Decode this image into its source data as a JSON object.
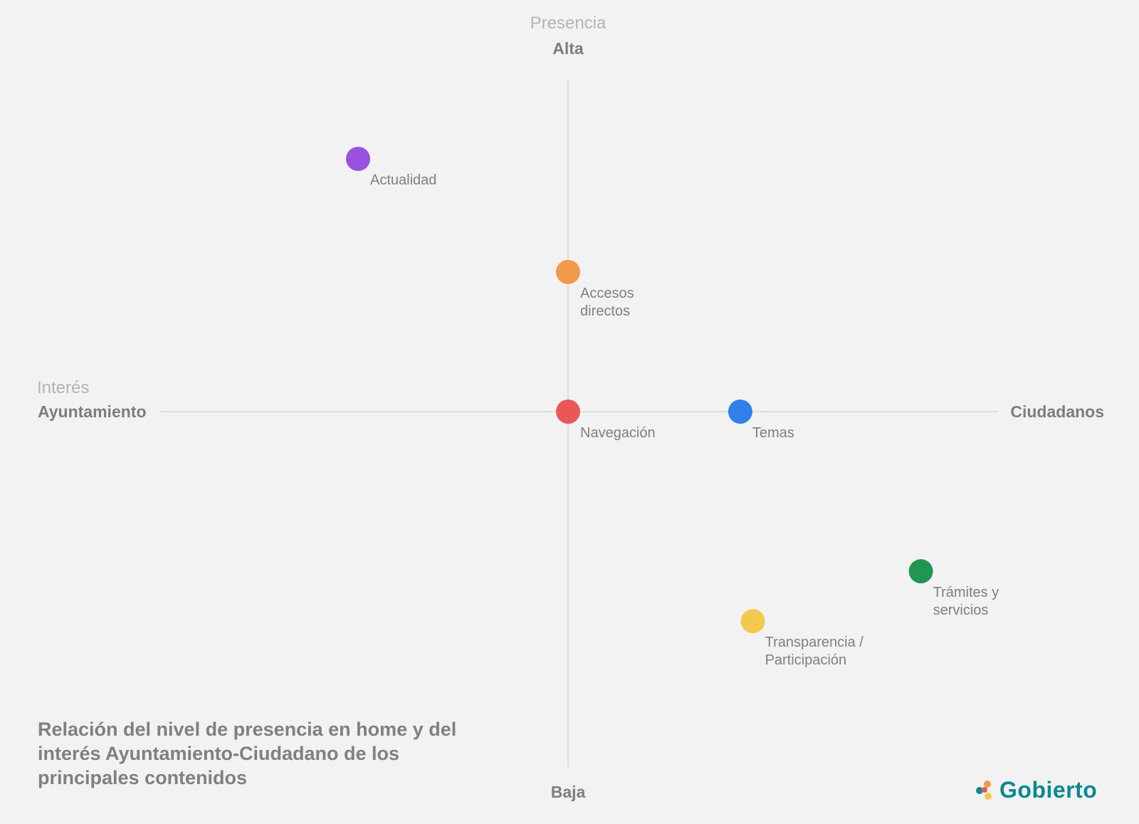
{
  "chart_data": {
    "type": "scatter",
    "title": "Relación del nivel de presencia en home y del interés Ayuntamiento-Ciudadano de los principales contenidos",
    "y_axis": {
      "name": "Presencia",
      "high_label": "Alta",
      "low_label": "Baja"
    },
    "x_axis": {
      "name": "Interés",
      "low_label": "Ayuntamiento",
      "high_label": "Ciudadanos"
    },
    "xlim": [
      -1,
      1
    ],
    "ylim": [
      -1,
      1
    ],
    "grid": false,
    "points": [
      {
        "label_lines": [
          "Actualidad"
        ],
        "x": -0.5,
        "y": 0.76,
        "color": "#9b51e0"
      },
      {
        "label_lines": [
          "Accesos",
          "directos"
        ],
        "x": 0.0,
        "y": 0.42,
        "color": "#f2994a"
      },
      {
        "label_lines": [
          "Navegación"
        ],
        "x": 0.0,
        "y": 0.0,
        "color": "#eb5757"
      },
      {
        "label_lines": [
          "Temas"
        ],
        "x": 0.41,
        "y": 0.0,
        "color": "#2f80ed"
      },
      {
        "label_lines": [
          "Trámites y",
          "servicios"
        ],
        "x": 0.84,
        "y": -0.48,
        "color": "#219653"
      },
      {
        "label_lines": [
          "Transparencia /",
          "Participación"
        ],
        "x": 0.44,
        "y": -0.63,
        "color": "#f2c94c"
      }
    ]
  },
  "logo": {
    "text": "Gobierto",
    "colors": [
      "#f2994a",
      "#0a8a8f",
      "#f2c94c",
      "#eb5757"
    ]
  }
}
